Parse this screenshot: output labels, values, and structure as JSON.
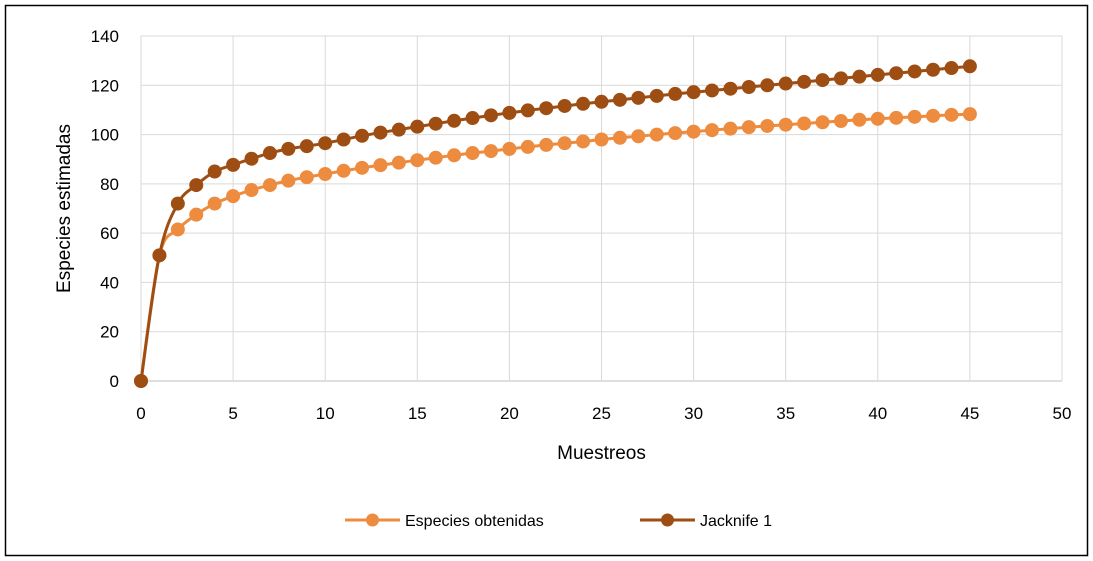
{
  "chart_data": {
    "type": "line",
    "title": "",
    "xlabel": "Muestreos",
    "ylabel": "Especies estimadas",
    "xlim": [
      0,
      50
    ],
    "ylim": [
      0,
      140
    ],
    "x_ticks": [
      0,
      5,
      10,
      15,
      20,
      25,
      30,
      35,
      40,
      45,
      50
    ],
    "y_ticks": [
      0,
      20,
      40,
      60,
      80,
      100,
      120,
      140
    ],
    "grid": true,
    "legend_position": "bottom",
    "x": [
      0,
      1,
      2,
      3,
      4,
      5,
      6,
      7,
      8,
      9,
      10,
      11,
      12,
      13,
      14,
      15,
      16,
      17,
      18,
      19,
      20,
      21,
      22,
      23,
      24,
      25,
      26,
      27,
      28,
      29,
      30,
      31,
      32,
      33,
      34,
      35,
      36,
      37,
      38,
      39,
      40,
      41,
      42,
      43,
      44,
      45
    ],
    "series": [
      {
        "name": "Especies obtenidas",
        "color": "#ED8B3F",
        "values": [
          0,
          51,
          61.5,
          67.5,
          72,
          75,
          77.5,
          79.5,
          81.3,
          82.7,
          84,
          85.3,
          86.5,
          87.6,
          88.6,
          89.6,
          90.6,
          91.6,
          92.5,
          93.3,
          94.2,
          95,
          95.8,
          96.5,
          97.2,
          98,
          98.7,
          99.3,
          100,
          100.6,
          101.2,
          101.8,
          102.4,
          103,
          103.5,
          104,
          104.5,
          105,
          105.5,
          106,
          106.4,
          106.8,
          107.2,
          107.6,
          108,
          108.3
        ]
      },
      {
        "name": "Jacknife 1",
        "color": "#9E4E12",
        "values": [
          0,
          51,
          72,
          79.5,
          85,
          87.7,
          90.2,
          92.5,
          94.2,
          95.3,
          96.5,
          98,
          99.5,
          100.8,
          102,
          103.2,
          104.4,
          105.6,
          106.7,
          107.8,
          108.8,
          109.8,
          110.7,
          111.6,
          112.5,
          113.3,
          114.1,
          114.9,
          115.7,
          116.5,
          117.2,
          117.9,
          118.6,
          119.3,
          120,
          120.7,
          121.4,
          122.1,
          122.8,
          123.5,
          124.2,
          124.9,
          125.6,
          126.3,
          127,
          127.7
        ]
      }
    ]
  }
}
